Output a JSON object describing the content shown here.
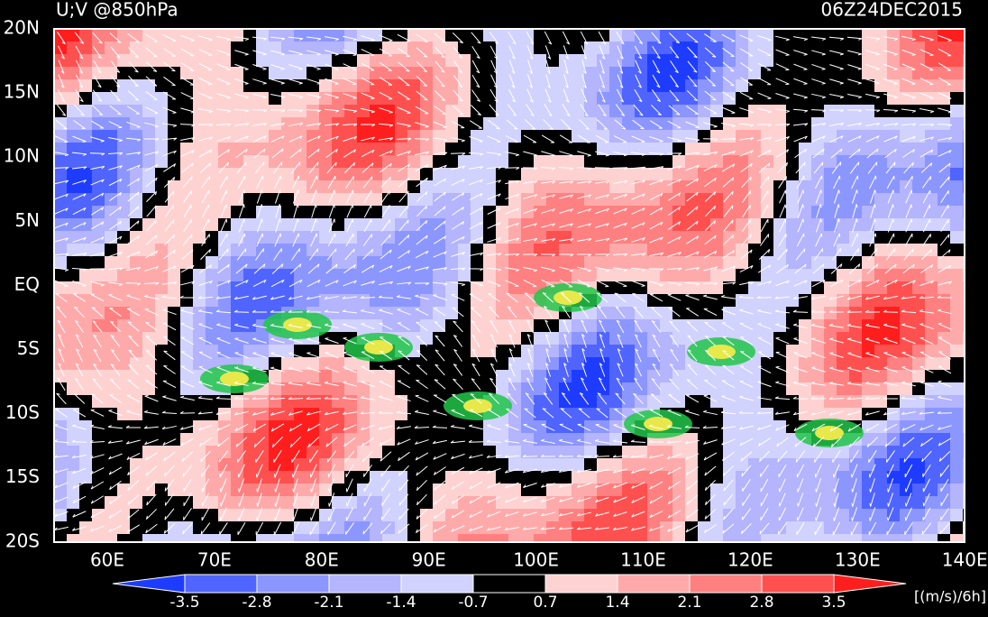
{
  "header": {
    "title": "U;V @850hPa",
    "time": "06Z24DEC2015"
  },
  "lat_labels": [
    "20N",
    "15N",
    "10N",
    "5N",
    "EQ",
    "5S",
    "10S",
    "15S",
    "20S"
  ],
  "lon_labels": [
    "60E",
    "70E",
    "80E",
    "90E",
    "100E",
    "110E",
    "120E",
    "130E",
    "140E"
  ],
  "colorbar": {
    "levels": [
      -3.5,
      -2.8,
      -2.1,
      -1.4,
      -0.7,
      0.7,
      1.4,
      2.1,
      2.8,
      3.5
    ],
    "colors": [
      "#1e3cff",
      "#5064ff",
      "#8c96ff",
      "#b4b4ff",
      "#d2d2ff",
      "#000000",
      "#ffd2d2",
      "#ffaaaa",
      "#ff8080",
      "#ff5050",
      "#ff1e1e"
    ],
    "unit": "[(m/s)/6h]"
  }
}
